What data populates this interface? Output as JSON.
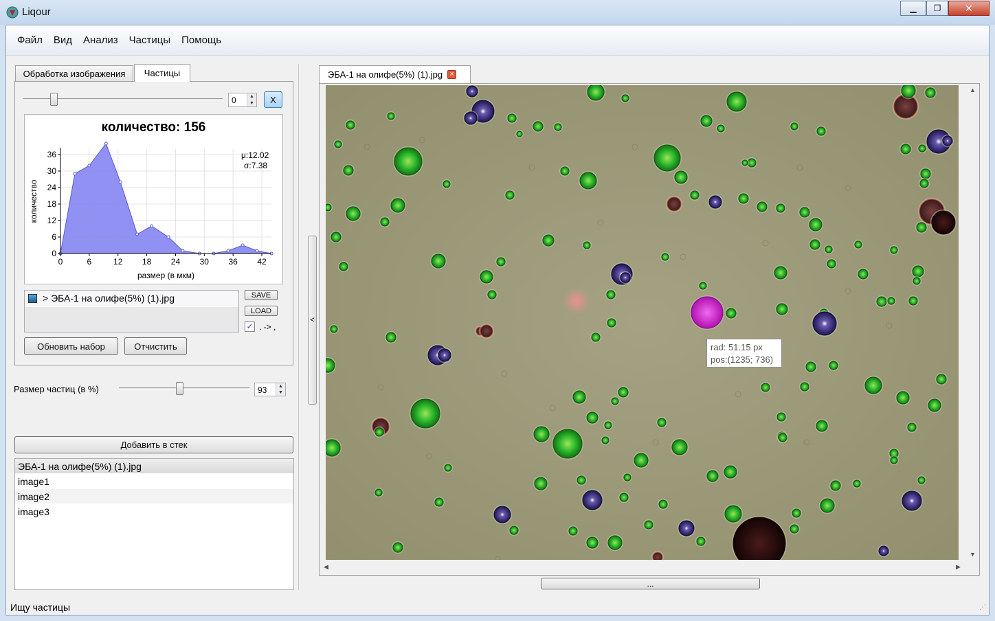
{
  "window": {
    "title": "Liqour"
  },
  "menu": [
    "Файл",
    "Вид",
    "Анализ",
    "Частицы",
    "Помощь"
  ],
  "left_tabs": [
    "Обработка изображения",
    "Частицы"
  ],
  "particles_tab": {
    "slider_value": "0",
    "x_button": "X",
    "count_title": "количество: 156",
    "stats": {
      "mu": "μ:12.02",
      "sigma": "σ:7.38"
    },
    "dataset_item": "> ЭБА-1 на олифе(5%) (1).jpg",
    "save_label": "SAVE",
    "load_label": "LOAD",
    "checkbox_label": ". -> ,",
    "refresh_button": "Обновить набор",
    "clear_button": "Отчистить"
  },
  "chart_data": {
    "type": "area",
    "title": "",
    "xlabel": "размер (в мкм)",
    "ylabel": "количество",
    "xlim": [
      0,
      44
    ],
    "ylim": [
      0,
      38
    ],
    "xticks": [
      0,
      6,
      12,
      18,
      24,
      30,
      36,
      42
    ],
    "yticks": [
      0,
      6,
      12,
      18,
      24,
      30,
      36
    ],
    "grid": true,
    "x": [
      0,
      3,
      6,
      9.5,
      12.5,
      16,
      19,
      22.5,
      25.5,
      29,
      32,
      35,
      38,
      41,
      44
    ],
    "y": [
      0,
      29,
      32,
      40,
      26,
      7,
      10,
      6,
      1,
      0,
      0,
      1,
      3,
      1,
      0
    ],
    "series": [
      {
        "values": [
          0,
          29,
          32,
          40,
          26,
          7,
          10,
          6,
          1,
          0,
          0,
          1,
          3,
          1,
          0
        ]
      }
    ],
    "colors": {
      "fill": "#8b8bf2",
      "line": "#5959cf"
    }
  },
  "size_control": {
    "label": "Размер частиц (в %)",
    "value": "93"
  },
  "stack": {
    "add_button": "Добавить в стек",
    "items": [
      "ЭБА-1 на олифе(5%) (1).jpg",
      "image1",
      "image2",
      "image3"
    ]
  },
  "splitter": {
    "arrow": "<"
  },
  "image_tab": {
    "title": "ЭБА-1 на олифе(5%) (1).jpg",
    "close": "×"
  },
  "viewer": {
    "more_button": "..."
  },
  "tooltip": {
    "rad": "rad: 51.15 px",
    "pos": "pos:(1235; 736)"
  },
  "status": "Ищу частицы",
  "colors": {
    "particle_green": "#2fbf2f",
    "particle_blue": "#3a2a7a",
    "particle_magenta": "#d01ad0",
    "particle_dark": "#2a0e0e",
    "background": "#9d9b78"
  }
}
